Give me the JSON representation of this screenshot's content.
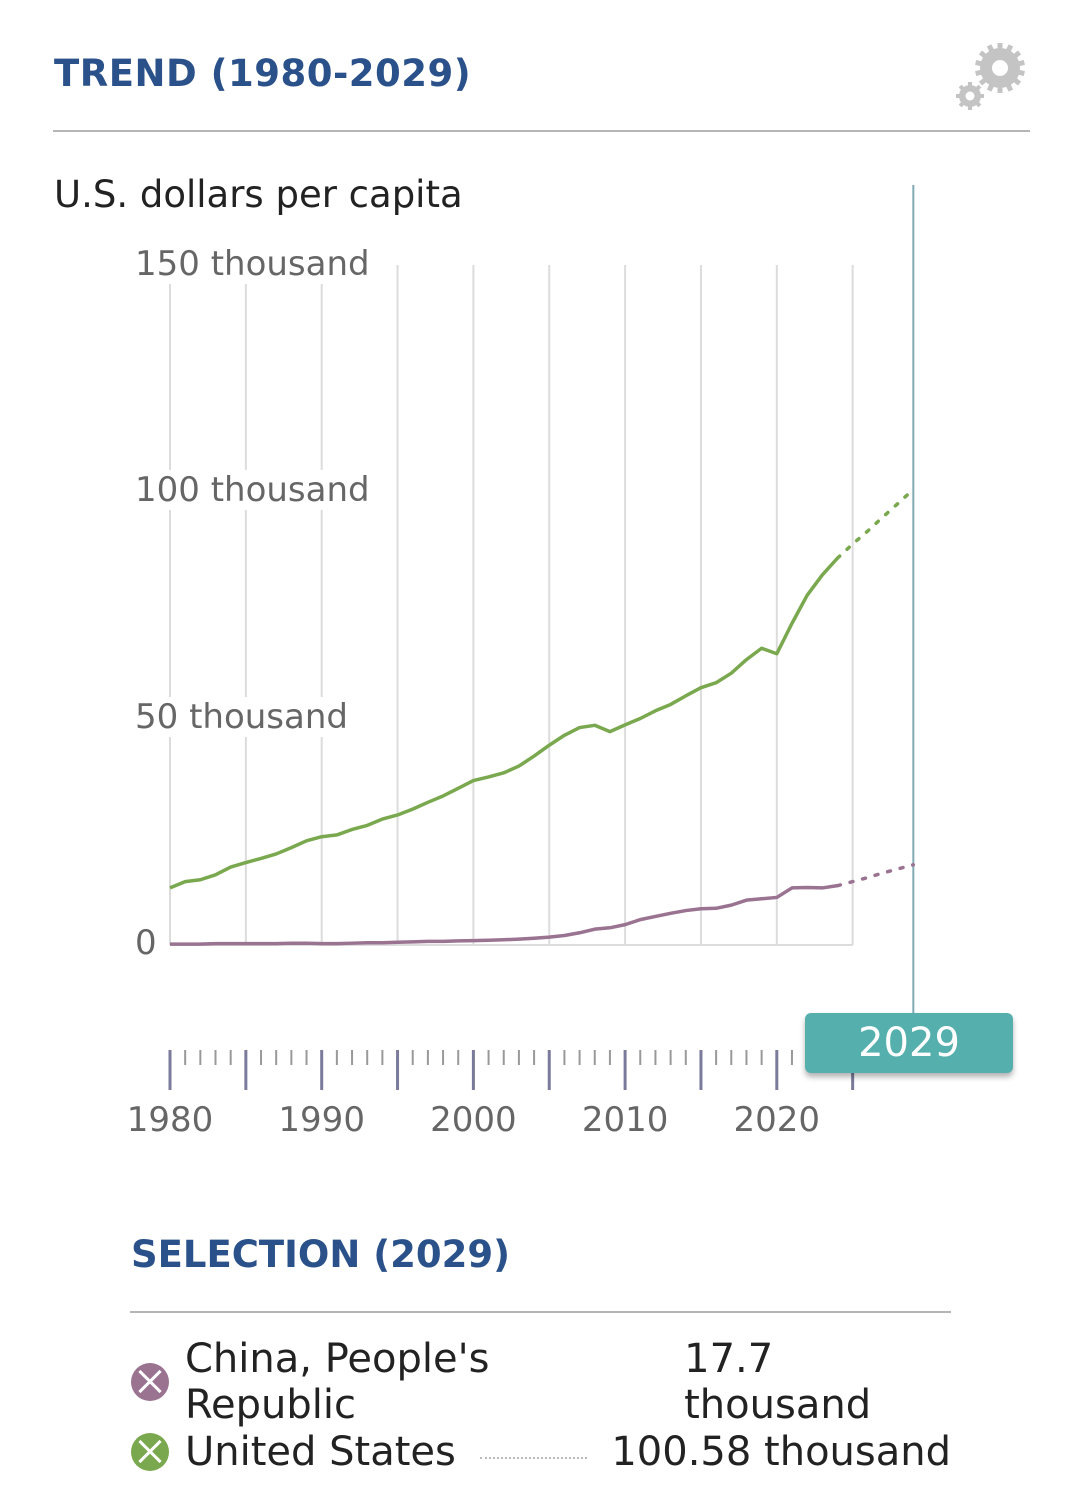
{
  "header": {
    "title": "TREND (1980-2029)",
    "settings_icon": "gears-icon"
  },
  "chart_data": {
    "type": "line",
    "title": "TREND (1980-2029)",
    "ylabel": "U.S. dollars per capita",
    "xlabel": "",
    "ylim": [
      0,
      150
    ],
    "xlim": [
      1980,
      2029
    ],
    "y_ticks": [
      {
        "value": 0,
        "label": "0"
      },
      {
        "value": 50,
        "label": "50 thousand"
      },
      {
        "value": 100,
        "label": "100 thousand"
      },
      {
        "value": 150,
        "label": "150 thousand"
      }
    ],
    "x_ticks": [
      {
        "value": 1980,
        "label": "1980"
      },
      {
        "value": 1990,
        "label": "1990"
      },
      {
        "value": 2000,
        "label": "2000"
      },
      {
        "value": 2010,
        "label": "2010"
      },
      {
        "value": 2020,
        "label": "2020"
      }
    ],
    "grid": true,
    "selected_year": "2029",
    "last_actual_year": 2024,
    "series": [
      {
        "name": "United States",
        "color": "#7aa84f",
        "values_start_year": 1980,
        "values": [
          12.6,
          14,
          14.4,
          15.5,
          17.2,
          18.2,
          19.1,
          20.1,
          21.5,
          23,
          23.9,
          24.3,
          25.5,
          26.4,
          27.8,
          28.7,
          30,
          31.5,
          32.9,
          34.6,
          36.3,
          37.1,
          38,
          39.5,
          41.7,
          44.1,
          46.3,
          48,
          48.5,
          47.1,
          48.6,
          50,
          51.7,
          53.1,
          55,
          56.8,
          57.9,
          60,
          63,
          65.5,
          64.3,
          71,
          77.2,
          81.7,
          85.4,
          88.5,
          91.4,
          94.5,
          97.5,
          100.58
        ]
      },
      {
        "name": "China, People's Republic",
        "color": "#9a7391",
        "values_start_year": 1980,
        "values": [
          0.2,
          0.2,
          0.2,
          0.3,
          0.3,
          0.3,
          0.3,
          0.3,
          0.4,
          0.4,
          0.3,
          0.3,
          0.4,
          0.5,
          0.5,
          0.6,
          0.7,
          0.8,
          0.8,
          0.9,
          0.96,
          1.05,
          1.15,
          1.3,
          1.5,
          1.75,
          2.1,
          2.7,
          3.5,
          3.8,
          4.5,
          5.6,
          6.3,
          7.0,
          7.6,
          8.0,
          8.1,
          8.8,
          9.9,
          10.2,
          10.5,
          12.6,
          12.7,
          12.6,
          13.1,
          14.0,
          14.9,
          15.9,
          16.8,
          17.7
        ]
      }
    ]
  },
  "selection": {
    "title": "SELECTION (2029)",
    "items": [
      {
        "name": "China, People's Republic",
        "value": "17.7 thousand",
        "color": "#9a7391"
      },
      {
        "name": "United States",
        "value": "100.58 thousand",
        "color": "#7aa84f"
      }
    ]
  }
}
